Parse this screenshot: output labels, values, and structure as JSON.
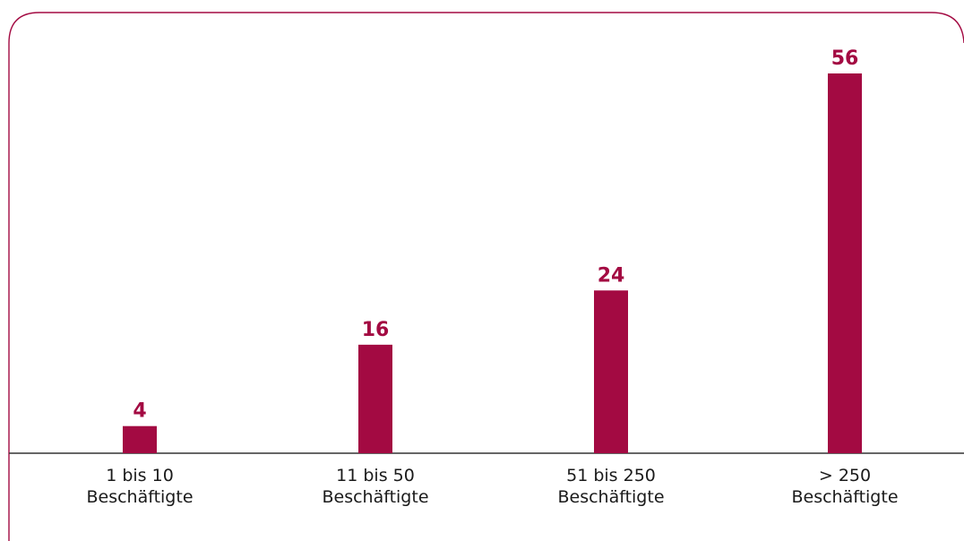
{
  "chart_data": {
    "type": "bar",
    "categories": [
      [
        "1 bis 10",
        "Beschäftigte"
      ],
      [
        "11 bis 50",
        "Beschäftigte"
      ],
      [
        "51 bis 250",
        "Beschäftigte"
      ],
      [
        "> 250",
        "Beschäftigte"
      ]
    ],
    "values": [
      4,
      16,
      24,
      56
    ],
    "value_labels": [
      "4",
      "16",
      "24",
      "56"
    ],
    "title": "",
    "xlabel": "",
    "ylabel": "",
    "ylim": [
      0,
      56
    ],
    "grid": false,
    "legend": "none",
    "colors": {
      "bar": "#a30a42",
      "value_label": "#a30a42",
      "frame": "#a30a42",
      "axis": "#333333"
    }
  }
}
